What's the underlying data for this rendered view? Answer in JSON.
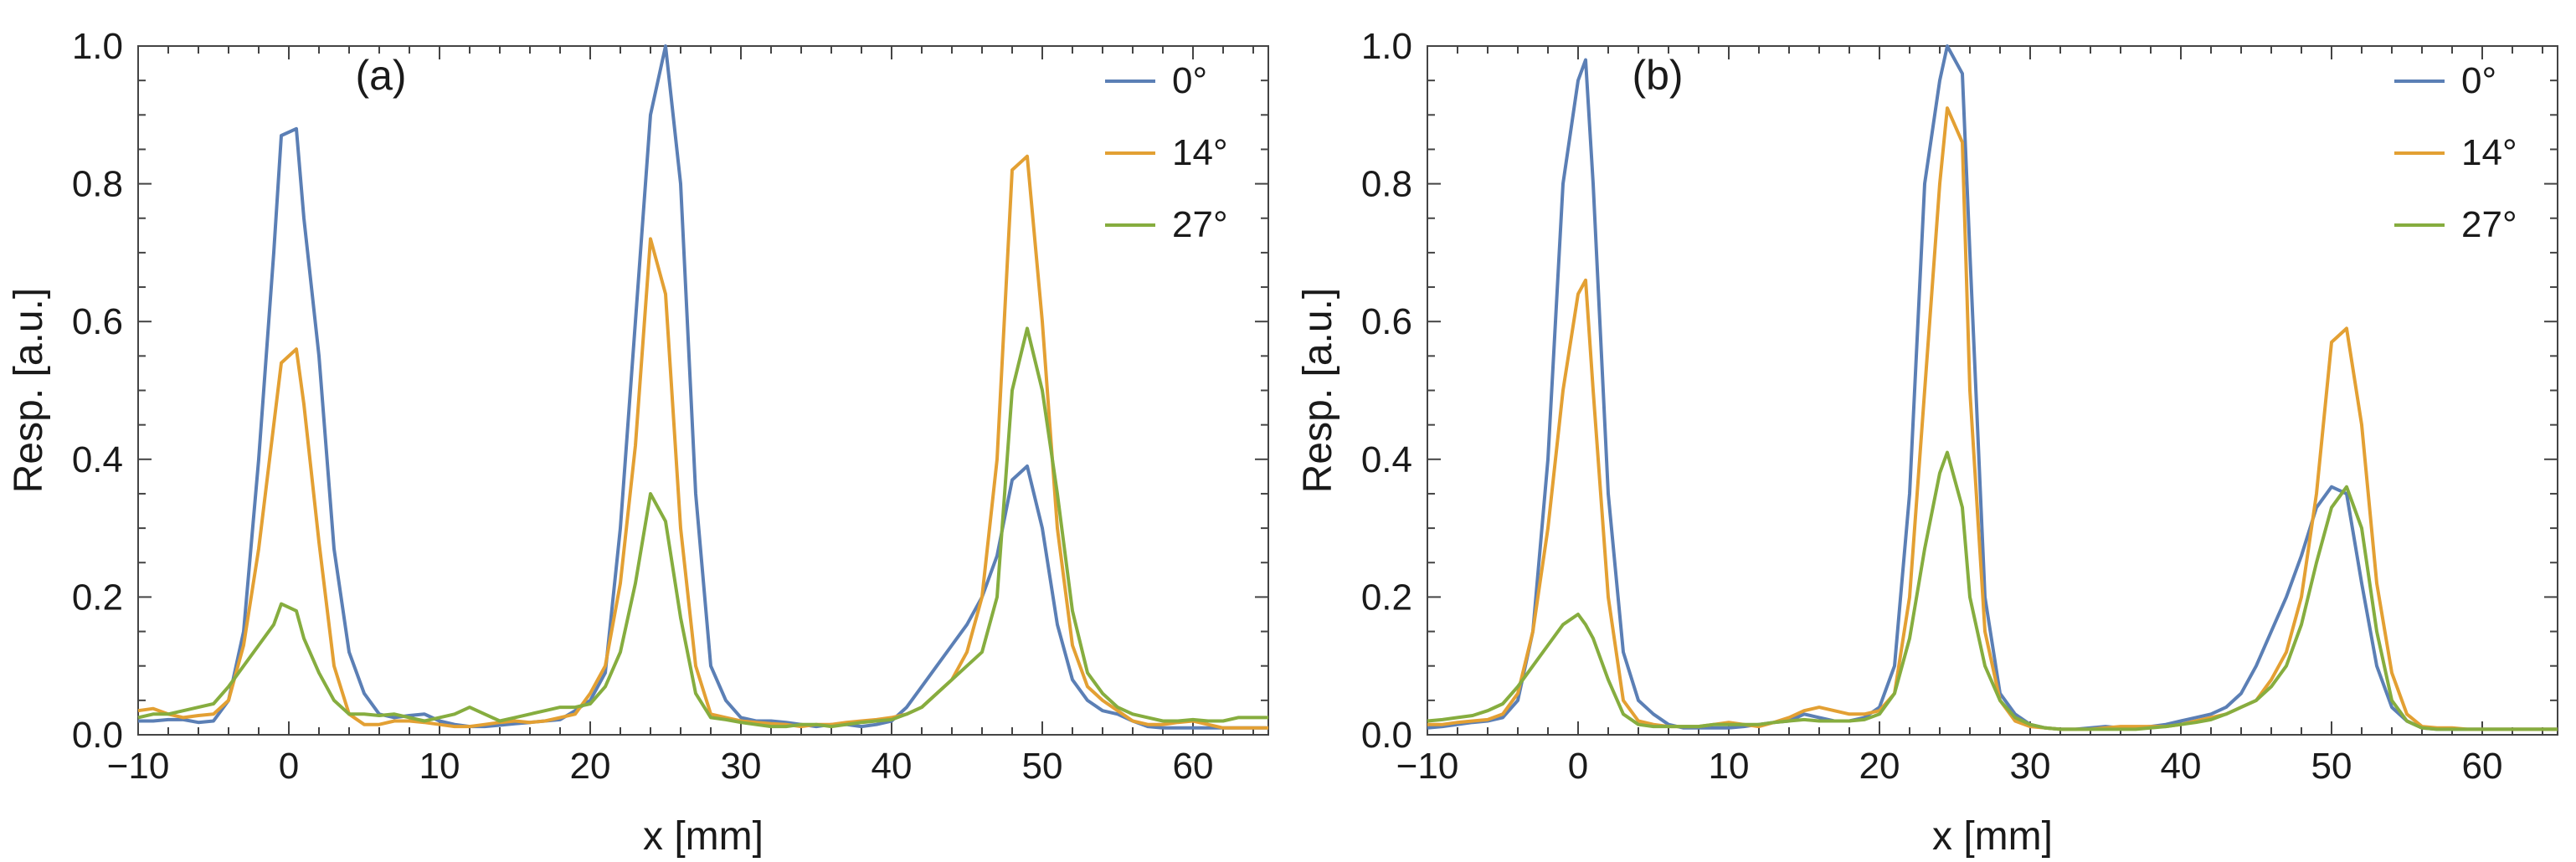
{
  "chart_data": [
    {
      "type": "line",
      "panel_label": "(a)",
      "xlabel": "x [mm]",
      "ylabel": "Resp. [a.u.]",
      "xlim": [
        -10,
        65
      ],
      "ylim": [
        0,
        1.0
      ],
      "xticks": [
        -10,
        0,
        10,
        20,
        30,
        40,
        50,
        60
      ],
      "xtick_labels": [
        "−10",
        "0",
        "10",
        "20",
        "30",
        "40",
        "50",
        "60"
      ],
      "yticks": [
        0,
        0.2,
        0.4,
        0.6,
        0.8,
        1.0
      ],
      "ytick_labels": [
        "0.0",
        "0.2",
        "0.4",
        "0.6",
        "0.8",
        "1.0"
      ],
      "legend_position": "top-right",
      "series": [
        {
          "name": "0°",
          "color": "#5b7fb5",
          "x": [
            -10,
            -9,
            -8,
            -7,
            -6,
            -5,
            -4,
            -3,
            -2,
            -1,
            -0.5,
            0.5,
            1,
            2,
            3,
            4,
            5,
            6,
            7,
            8,
            9,
            10,
            11,
            12,
            13,
            14,
            15,
            16,
            17,
            18,
            19,
            20,
            21,
            22,
            23,
            24,
            25,
            26,
            27,
            28,
            29,
            30,
            31,
            32,
            33,
            34,
            35,
            36,
            37,
            38,
            39,
            40,
            41,
            42,
            43,
            44,
            45,
            46,
            47,
            48,
            49,
            50,
            51,
            52,
            53,
            54,
            55,
            56,
            57,
            58,
            59,
            60,
            61,
            62,
            63,
            64,
            65
          ],
          "y": [
            0.02,
            0.02,
            0.022,
            0.022,
            0.018,
            0.02,
            0.05,
            0.15,
            0.4,
            0.7,
            0.87,
            0.88,
            0.75,
            0.55,
            0.27,
            0.12,
            0.06,
            0.03,
            0.025,
            0.028,
            0.03,
            0.02,
            0.015,
            0.012,
            0.012,
            0.014,
            0.016,
            0.018,
            0.02,
            0.022,
            0.035,
            0.05,
            0.09,
            0.3,
            0.6,
            0.9,
            1.0,
            0.8,
            0.35,
            0.1,
            0.05,
            0.025,
            0.02,
            0.02,
            0.018,
            0.015,
            0.012,
            0.015,
            0.015,
            0.012,
            0.015,
            0.02,
            0.04,
            0.07,
            0.1,
            0.13,
            0.16,
            0.2,
            0.26,
            0.37,
            0.39,
            0.3,
            0.16,
            0.08,
            0.05,
            0.035,
            0.03,
            0.02,
            0.012,
            0.01,
            0.01,
            0.01,
            0.01,
            0.01,
            0.01,
            0.01,
            0.01
          ]
        },
        {
          "name": "14°",
          "color": "#e3a033",
          "x": [
            -10,
            -9,
            -8,
            -7,
            -6,
            -5,
            -4,
            -3,
            -2,
            -1,
            -0.5,
            0.5,
            1,
            2,
            3,
            4,
            5,
            6,
            7,
            8,
            9,
            10,
            11,
            12,
            13,
            14,
            15,
            16,
            17,
            18,
            19,
            20,
            21,
            22,
            23,
            24,
            25,
            26,
            27,
            28,
            29,
            30,
            31,
            32,
            33,
            34,
            35,
            36,
            37,
            38,
            39,
            40,
            41,
            42,
            43,
            44,
            45,
            46,
            47,
            48,
            49,
            50,
            51,
            52,
            53,
            54,
            55,
            56,
            57,
            58,
            59,
            60,
            61,
            62,
            63,
            64,
            65
          ],
          "y": [
            0.035,
            0.038,
            0.03,
            0.025,
            0.028,
            0.03,
            0.05,
            0.13,
            0.27,
            0.45,
            0.54,
            0.56,
            0.48,
            0.28,
            0.1,
            0.03,
            0.015,
            0.015,
            0.02,
            0.02,
            0.018,
            0.015,
            0.012,
            0.012,
            0.015,
            0.018,
            0.02,
            0.018,
            0.02,
            0.025,
            0.03,
            0.06,
            0.1,
            0.22,
            0.42,
            0.72,
            0.64,
            0.3,
            0.1,
            0.03,
            0.025,
            0.02,
            0.018,
            0.016,
            0.015,
            0.012,
            0.015,
            0.015,
            0.018,
            0.02,
            0.022,
            0.025,
            0.03,
            0.04,
            0.06,
            0.08,
            0.12,
            0.2,
            0.4,
            0.82,
            0.84,
            0.6,
            0.3,
            0.13,
            0.07,
            0.05,
            0.035,
            0.02,
            0.015,
            0.015,
            0.018,
            0.02,
            0.015,
            0.01,
            0.01,
            0.01,
            0.01
          ]
        },
        {
          "name": "27°",
          "color": "#86ad3f",
          "x": [
            -10,
            -9,
            -8,
            -7,
            -6,
            -5,
            -4,
            -3,
            -2,
            -1,
            -0.5,
            0.5,
            1,
            2,
            3,
            4,
            5,
            6,
            7,
            8,
            9,
            10,
            11,
            12,
            13,
            14,
            15,
            16,
            17,
            18,
            19,
            20,
            21,
            22,
            23,
            24,
            25,
            26,
            27,
            28,
            29,
            30,
            31,
            32,
            33,
            34,
            35,
            36,
            37,
            38,
            39,
            40,
            41,
            42,
            43,
            44,
            45,
            46,
            47,
            48,
            49,
            50,
            51,
            52,
            53,
            54,
            55,
            56,
            57,
            58,
            59,
            60,
            61,
            62,
            63,
            64,
            65
          ],
          "y": [
            0.025,
            0.03,
            0.03,
            0.035,
            0.04,
            0.045,
            0.07,
            0.1,
            0.13,
            0.16,
            0.19,
            0.18,
            0.14,
            0.09,
            0.05,
            0.03,
            0.03,
            0.028,
            0.03,
            0.025,
            0.02,
            0.025,
            0.03,
            0.04,
            0.03,
            0.02,
            0.025,
            0.03,
            0.035,
            0.04,
            0.04,
            0.045,
            0.07,
            0.12,
            0.22,
            0.35,
            0.31,
            0.17,
            0.06,
            0.025,
            0.022,
            0.018,
            0.015,
            0.012,
            0.012,
            0.015,
            0.015,
            0.012,
            0.015,
            0.018,
            0.02,
            0.022,
            0.03,
            0.04,
            0.06,
            0.08,
            0.1,
            0.12,
            0.2,
            0.5,
            0.59,
            0.5,
            0.35,
            0.18,
            0.09,
            0.06,
            0.04,
            0.03,
            0.025,
            0.02,
            0.02,
            0.022,
            0.02,
            0.02,
            0.025,
            0.025,
            0.025
          ]
        }
      ]
    },
    {
      "type": "line",
      "panel_label": "(b)",
      "xlabel": "x [mm]",
      "ylabel": "Resp. [a.u.]",
      "xlim": [
        -10,
        65
      ],
      "ylim": [
        0,
        1.0
      ],
      "xticks": [
        -10,
        0,
        10,
        20,
        30,
        40,
        50,
        60
      ],
      "xtick_labels": [
        "−10",
        "0",
        "10",
        "20",
        "30",
        "40",
        "50",
        "60"
      ],
      "yticks": [
        0,
        0.2,
        0.4,
        0.6,
        0.8,
        1.0
      ],
      "ytick_labels": [
        "0.0",
        "0.2",
        "0.4",
        "0.6",
        "0.8",
        "1.0"
      ],
      "legend_position": "top-right",
      "series": [
        {
          "name": "0°",
          "color": "#5b7fb5",
          "x": [
            -10,
            -9,
            -8,
            -7,
            -6,
            -5,
            -4,
            -3,
            -2,
            -1,
            0,
            0.5,
            1,
            2,
            3,
            4,
            5,
            6,
            7,
            8,
            9,
            10,
            11,
            12,
            13,
            14,
            15,
            16,
            17,
            18,
            19,
            20,
            21,
            22,
            23,
            24,
            24.5,
            25.5,
            26,
            27,
            28,
            29,
            30,
            31,
            32,
            33,
            34,
            35,
            36,
            37,
            38,
            39,
            40,
            41,
            42,
            43,
            44,
            45,
            46,
            47,
            48,
            49,
            50,
            51,
            52,
            53,
            54,
            55,
            56,
            57,
            58,
            59,
            60,
            61,
            62,
            63,
            64,
            65
          ],
          "y": [
            0.01,
            0.012,
            0.015,
            0.018,
            0.02,
            0.025,
            0.05,
            0.15,
            0.4,
            0.8,
            0.95,
            0.98,
            0.8,
            0.35,
            0.12,
            0.05,
            0.03,
            0.015,
            0.01,
            0.01,
            0.01,
            0.01,
            0.012,
            0.015,
            0.018,
            0.02,
            0.03,
            0.025,
            0.02,
            0.02,
            0.025,
            0.04,
            0.1,
            0.35,
            0.8,
            0.95,
            1.0,
            0.96,
            0.7,
            0.2,
            0.06,
            0.03,
            0.015,
            0.01,
            0.008,
            0.008,
            0.01,
            0.012,
            0.01,
            0.01,
            0.012,
            0.015,
            0.02,
            0.025,
            0.03,
            0.04,
            0.06,
            0.1,
            0.15,
            0.2,
            0.26,
            0.33,
            0.36,
            0.35,
            0.22,
            0.1,
            0.04,
            0.02,
            0.01,
            0.008,
            0.008,
            0.008,
            0.008,
            0.008,
            0.008,
            0.008,
            0.008,
            0.008
          ]
        },
        {
          "name": "14°",
          "color": "#e3a033",
          "x": [
            -10,
            -9,
            -8,
            -7,
            -6,
            -5,
            -4,
            -3,
            -2,
            -1,
            0,
            0.5,
            1,
            2,
            3,
            4,
            5,
            6,
            7,
            8,
            9,
            10,
            11,
            12,
            13,
            14,
            15,
            16,
            17,
            18,
            19,
            20,
            21,
            22,
            23,
            24,
            24.5,
            25.5,
            26,
            27,
            28,
            29,
            30,
            31,
            32,
            33,
            34,
            35,
            36,
            37,
            38,
            39,
            40,
            41,
            42,
            43,
            44,
            45,
            46,
            47,
            48,
            49,
            50,
            51,
            52,
            53,
            54,
            55,
            56,
            57,
            58,
            59,
            60,
            61,
            62,
            63,
            64,
            65
          ],
          "y": [
            0.015,
            0.015,
            0.018,
            0.02,
            0.022,
            0.03,
            0.06,
            0.15,
            0.3,
            0.5,
            0.64,
            0.66,
            0.5,
            0.2,
            0.05,
            0.02,
            0.015,
            0.012,
            0.012,
            0.012,
            0.015,
            0.018,
            0.015,
            0.012,
            0.018,
            0.025,
            0.035,
            0.04,
            0.035,
            0.03,
            0.03,
            0.035,
            0.06,
            0.2,
            0.5,
            0.8,
            0.91,
            0.86,
            0.5,
            0.15,
            0.05,
            0.02,
            0.012,
            0.01,
            0.008,
            0.008,
            0.008,
            0.01,
            0.012,
            0.012,
            0.012,
            0.012,
            0.015,
            0.02,
            0.025,
            0.03,
            0.04,
            0.05,
            0.08,
            0.12,
            0.2,
            0.35,
            0.57,
            0.59,
            0.45,
            0.22,
            0.09,
            0.03,
            0.012,
            0.01,
            0.01,
            0.008,
            0.008,
            0.008,
            0.008,
            0.008,
            0.008,
            0.008
          ]
        },
        {
          "name": "27°",
          "color": "#86ad3f",
          "x": [
            -10,
            -9,
            -8,
            -7,
            -6,
            -5,
            -4,
            -3,
            -2,
            -1,
            0,
            0.5,
            1,
            2,
            3,
            4,
            5,
            6,
            7,
            8,
            9,
            10,
            11,
            12,
            13,
            14,
            15,
            16,
            17,
            18,
            19,
            20,
            21,
            22,
            23,
            24,
            24.5,
            25.5,
            26,
            27,
            28,
            29,
            30,
            31,
            32,
            33,
            34,
            35,
            36,
            37,
            38,
            39,
            40,
            41,
            42,
            43,
            44,
            45,
            46,
            47,
            48,
            49,
            50,
            51,
            52,
            53,
            54,
            55,
            56,
            57,
            58,
            59,
            60,
            61,
            62,
            63,
            64,
            65
          ],
          "y": [
            0.02,
            0.022,
            0.025,
            0.028,
            0.035,
            0.045,
            0.07,
            0.1,
            0.13,
            0.16,
            0.175,
            0.16,
            0.14,
            0.08,
            0.03,
            0.015,
            0.012,
            0.012,
            0.012,
            0.012,
            0.015,
            0.015,
            0.015,
            0.015,
            0.018,
            0.02,
            0.022,
            0.02,
            0.02,
            0.02,
            0.022,
            0.03,
            0.06,
            0.14,
            0.27,
            0.38,
            0.41,
            0.33,
            0.2,
            0.1,
            0.05,
            0.025,
            0.015,
            0.01,
            0.008,
            0.008,
            0.008,
            0.008,
            0.008,
            0.008,
            0.01,
            0.012,
            0.015,
            0.018,
            0.022,
            0.03,
            0.04,
            0.05,
            0.07,
            0.1,
            0.16,
            0.25,
            0.33,
            0.36,
            0.3,
            0.15,
            0.05,
            0.02,
            0.01,
            0.008,
            0.008,
            0.008,
            0.008,
            0.008,
            0.008,
            0.008,
            0.008,
            0.008
          ]
        }
      ]
    }
  ]
}
